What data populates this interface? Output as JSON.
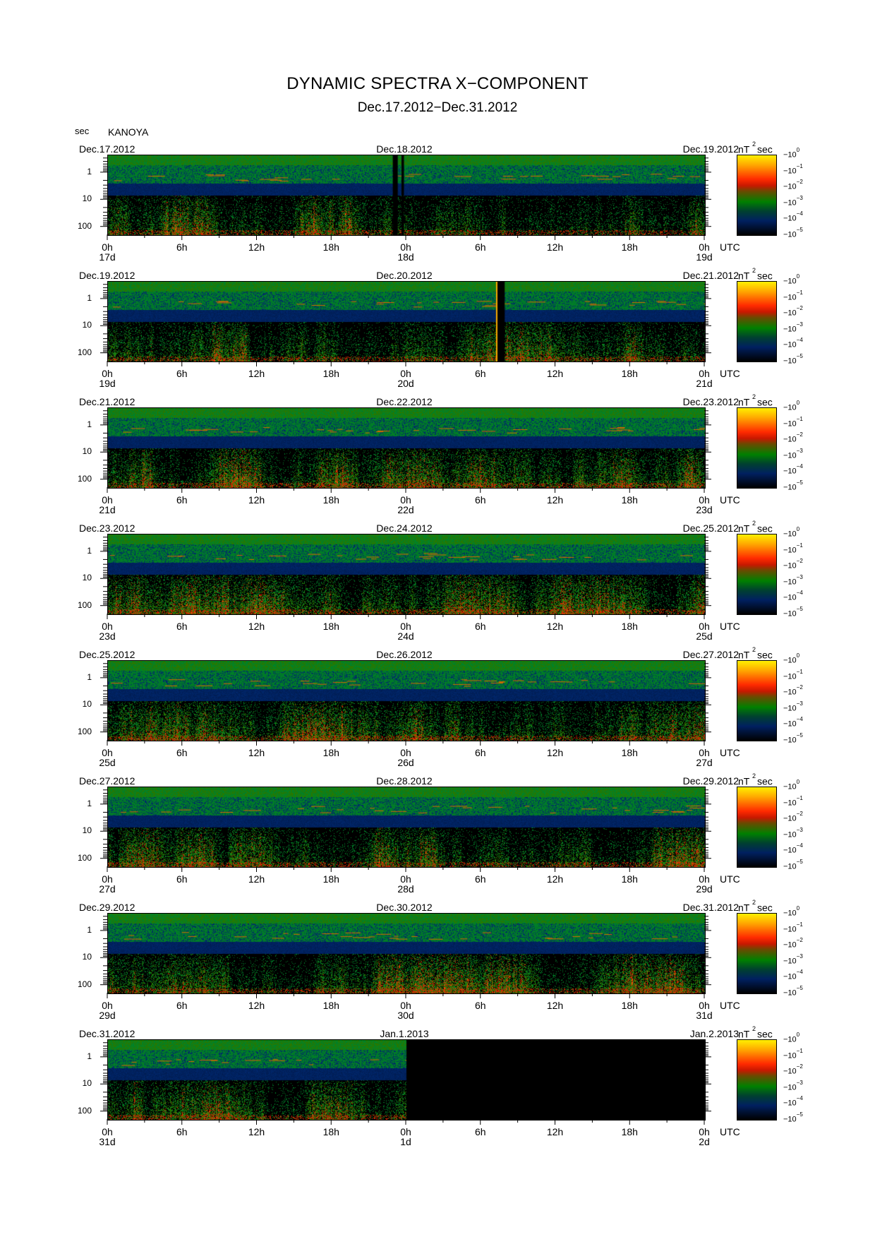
{
  "header": {
    "title": "DYNAMIC SPECTRA X−COMPONENT",
    "subtitle": "Dec.17.2012−Dec.31.2012",
    "y_unit": "sec",
    "station": "KANOYA"
  },
  "colorbar": {
    "unit_base": "nT",
    "unit_exp": "2",
    "unit_suffix": "sec",
    "ticks": [
      {
        "base": "10",
        "exp": "0"
      },
      {
        "base": "10",
        "exp": "−1"
      },
      {
        "base": "10",
        "exp": "−2"
      },
      {
        "base": "10",
        "exp": "−3"
      },
      {
        "base": "10",
        "exp": "−4"
      },
      {
        "base": "10",
        "exp": "−5"
      }
    ],
    "colors": [
      "#fff000",
      "#ff2a00",
      "#008000",
      "#002060",
      "#000000"
    ]
  },
  "chart_data": {
    "type": "heatmap",
    "description_scale": "log",
    "y_ticks": [
      "1",
      "10",
      "100"
    ],
    "x_ticks": [
      "0h",
      "6h",
      "12h",
      "18h",
      "0h",
      "6h",
      "12h",
      "18h",
      "0h"
    ],
    "x_unit": "UTC",
    "panels": [
      {
        "start_date": "Dec.17.2012",
        "mid_date": "Dec.18.2012",
        "end_date": "Dec.19.2012",
        "day_labels": [
          "17d",
          "18d",
          "19d"
        ],
        "gaps_hours": [
          [
            22.9,
            23.3
          ],
          [
            23.6,
            23.8
          ]
        ],
        "yellow_lines_hours": [],
        "nodata_from_hours": null
      },
      {
        "start_date": "Dec.19.2012",
        "mid_date": "Dec.20.2012",
        "end_date": "Dec.21.2012",
        "day_labels": [
          "19d",
          "20d",
          "21d"
        ],
        "gaps_hours": [
          [
            31.2,
            31.9
          ]
        ],
        "yellow_lines_hours": [
          31.2
        ],
        "nodata_from_hours": null
      },
      {
        "start_date": "Dec.21.2012",
        "mid_date": "Dec.22.2012",
        "end_date": "Dec.23.2012",
        "day_labels": [
          "21d",
          "22d",
          "23d"
        ],
        "gaps_hours": [],
        "yellow_lines_hours": [],
        "nodata_from_hours": null
      },
      {
        "start_date": "Dec.23.2012",
        "mid_date": "Dec.24.2012",
        "end_date": "Dec.25.2012",
        "day_labels": [
          "23d",
          "24d",
          "25d"
        ],
        "gaps_hours": [],
        "yellow_lines_hours": [],
        "nodata_from_hours": null
      },
      {
        "start_date": "Dec.25.2012",
        "mid_date": "Dec.26.2012",
        "end_date": "Dec.27.2012",
        "day_labels": [
          "25d",
          "26d",
          "27d"
        ],
        "gaps_hours": [],
        "yellow_lines_hours": [],
        "nodata_from_hours": null
      },
      {
        "start_date": "Dec.27.2012",
        "mid_date": "Dec.28.2012",
        "end_date": "Dec.29.2012",
        "day_labels": [
          "27d",
          "28d",
          "29d"
        ],
        "gaps_hours": [],
        "yellow_lines_hours": [],
        "nodata_from_hours": null
      },
      {
        "start_date": "Dec.29.2012",
        "mid_date": "Dec.30.2012",
        "end_date": "Dec.31.2012",
        "day_labels": [
          "29d",
          "30d",
          "31d"
        ],
        "gaps_hours": [],
        "yellow_lines_hours": [],
        "nodata_from_hours": null
      },
      {
        "start_date": "Dec.31.2012",
        "mid_date": "Jan.1.2013",
        "end_date": "Jan.2.2013",
        "day_labels": [
          "31d",
          "1d",
          "2d"
        ],
        "gaps_hours": [],
        "yellow_lines_hours": [],
        "nodata_from_hours": 24
      }
    ]
  }
}
